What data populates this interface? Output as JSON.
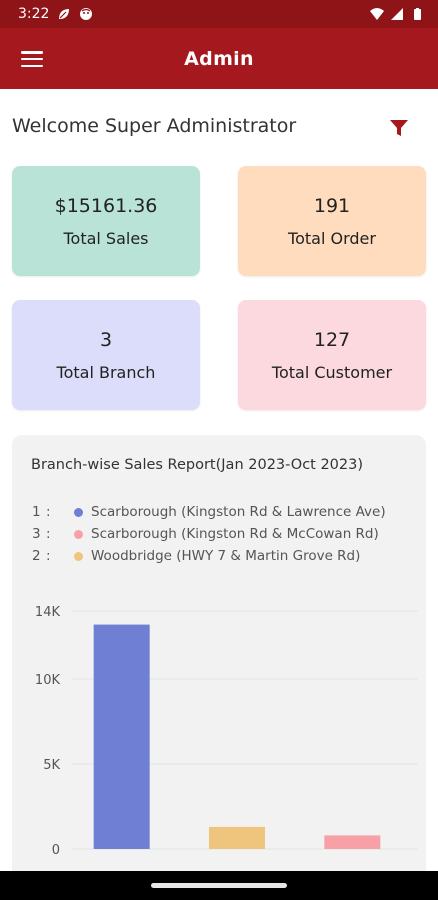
{
  "status_bar": {
    "time": "3:22",
    "icons": [
      "leaf-icon",
      "face-icon",
      "wifi-icon",
      "signal-icon",
      "battery-icon"
    ]
  },
  "app_bar": {
    "title": "Admin",
    "menu_icon": "hamburger-menu-icon"
  },
  "welcome": {
    "text": "Welcome Super Administrator",
    "filter_icon": "filter-icon",
    "filter_color": "#a5181e"
  },
  "cards": [
    {
      "value": "$15161.36",
      "label": "Total Sales",
      "color": "#b9e3d6"
    },
    {
      "value": "191",
      "label": "Total Order",
      "color": "#ffdcbd"
    },
    {
      "value": "3",
      "label": "Total Branch",
      "color": "#dcdcfb"
    },
    {
      "value": "127",
      "label": "Total Customer",
      "color": "#fbd9df"
    }
  ],
  "report": {
    "title": "Branch-wise Sales Report(Jan 2023-Oct 2023)",
    "legend": [
      {
        "rank": "1",
        "sep": ":",
        "name": "Scarborough (Kingston Rd & Lawrence Ave)",
        "color": "#6f7fd4"
      },
      {
        "rank": "3",
        "sep": ":",
        "name": "Scarborough (Kingston Rd & McCowan Rd)",
        "color": "#f7a1a6"
      },
      {
        "rank": "2",
        "sep": ":",
        "name": "Woodbridge (HWY 7 & Martin Grove Rd)",
        "color": "#efc47c"
      }
    ]
  },
  "chart_data": {
    "type": "bar",
    "categories": [
      "1",
      "2",
      "3"
    ],
    "values": [
      13200,
      1300,
      800
    ],
    "colors": [
      "#6f7fd4",
      "#efc47c",
      "#f7a1a6"
    ],
    "yticks": [
      "0",
      "5K",
      "10K",
      "14K"
    ],
    "ytick_values": [
      0,
      5000,
      10000,
      14000
    ],
    "ylim": [
      0,
      14000
    ],
    "grid": true
  }
}
